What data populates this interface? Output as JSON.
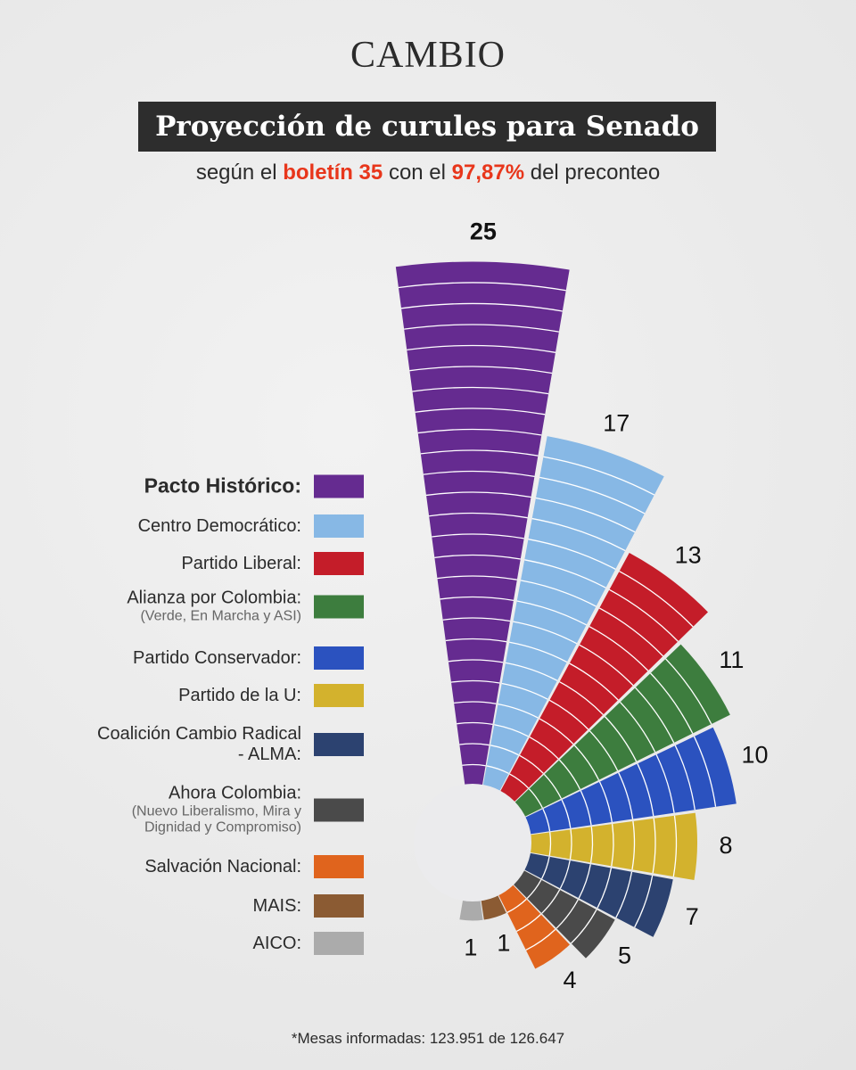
{
  "header": {
    "brand": "CAMBIO",
    "title": "Proyección de curules para Senado",
    "subtitle": {
      "parts": [
        "según el",
        "boletín 35",
        "con el",
        "97,87%",
        "del preconteo"
      ]
    }
  },
  "chart_data": {
    "type": "radial-bar",
    "categories": [
      "Pacto Histórico:",
      "Centro Democrático:",
      "Partido Liberal:",
      "Alianza por Colombia:",
      "Partido Conservador:",
      "Partido de la U:",
      "Coalición Cambio Radical - ALMA:",
      "Ahora Colombia:",
      "Salvación Nacional:",
      "MAIS:",
      "AICO:"
    ],
    "notes": [
      null,
      null,
      null,
      "(Verde, En Marcha y ASI)",
      null,
      null,
      null,
      "(Nuevo Liberalismo, Mira y Dignidad y Compromiso)",
      null,
      null,
      null
    ],
    "values": [
      25,
      17,
      13,
      11,
      10,
      8,
      7,
      5,
      4,
      1,
      1
    ],
    "colors": [
      "#652b90",
      "#87b8e5",
      "#c41d29",
      "#3d7d3e",
      "#2b52bf",
      "#d3b22d",
      "#2c4270",
      "#4a4a4a",
      "#e0641d",
      "#8b5b33",
      "#ababab"
    ]
  },
  "footnote": "*Mesas informadas: 123.951 de 126.647"
}
